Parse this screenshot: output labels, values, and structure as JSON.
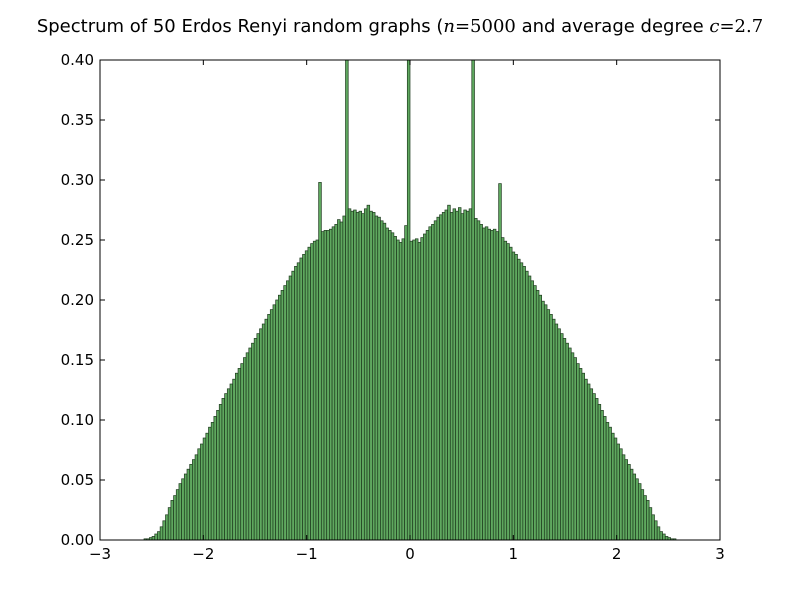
{
  "chart_data": {
    "type": "bar",
    "subtype": "histogram",
    "title_parts": {
      "prefix": "Spectrum of 50 Erdos Renyi random graphs (",
      "n_symbol": "n",
      "n_value": "=5000",
      "middle": " and average degree ",
      "c_symbol": "c",
      "c_value": "=2.7"
    },
    "xlabel": "",
    "ylabel": "",
    "xlim": [
      -3,
      3
    ],
    "ylim": [
      0,
      0.4
    ],
    "x_ticks": [
      "−3",
      "−2",
      "−1",
      "0",
      "1",
      "2",
      "3"
    ],
    "y_ticks": [
      "0.00",
      "0.05",
      "0.10",
      "0.15",
      "0.20",
      "0.25",
      "0.30",
      "0.35",
      "0.40"
    ],
    "bin_range": [
      -2.6,
      2.6
    ],
    "bin_count": 200,
    "grid": false,
    "bar_color": "#5fa85f",
    "edge_color": "#1e3b1e",
    "values": [
      0.0,
      0.001,
      0.001,
      0.002,
      0.003,
      0.005,
      0.007,
      0.011,
      0.016,
      0.021,
      0.027,
      0.033,
      0.037,
      0.042,
      0.047,
      0.051,
      0.055,
      0.059,
      0.063,
      0.067,
      0.071,
      0.076,
      0.08,
      0.085,
      0.089,
      0.094,
      0.098,
      0.103,
      0.108,
      0.113,
      0.118,
      0.122,
      0.126,
      0.13,
      0.134,
      0.139,
      0.143,
      0.147,
      0.152,
      0.156,
      0.16,
      0.164,
      0.168,
      0.172,
      0.176,
      0.18,
      0.184,
      0.188,
      0.192,
      0.196,
      0.2,
      0.204,
      0.208,
      0.212,
      0.216,
      0.22,
      0.224,
      0.228,
      0.231,
      0.235,
      0.238,
      0.241,
      0.244,
      0.247,
      0.249,
      0.25,
      0.298,
      0.257,
      0.258,
      0.258,
      0.259,
      0.261,
      0.263,
      0.267,
      0.265,
      0.27,
      0.45,
      0.276,
      0.274,
      0.275,
      0.273,
      0.274,
      0.272,
      0.276,
      0.279,
      0.274,
      0.273,
      0.27,
      0.269,
      0.266,
      0.264,
      0.26,
      0.258,
      0.256,
      0.253,
      0.25,
      0.248,
      0.251,
      0.262,
      0.45,
      0.249,
      0.25,
      0.251,
      0.248,
      0.252,
      0.255,
      0.258,
      0.261,
      0.263,
      0.266,
      0.269,
      0.271,
      0.273,
      0.275,
      0.279,
      0.273,
      0.276,
      0.274,
      0.277,
      0.272,
      0.275,
      0.274,
      0.276,
      0.45,
      0.268,
      0.266,
      0.263,
      0.26,
      0.261,
      0.259,
      0.258,
      0.259,
      0.257,
      0.297,
      0.252,
      0.249,
      0.247,
      0.244,
      0.24,
      0.238,
      0.234,
      0.231,
      0.228,
      0.224,
      0.22,
      0.216,
      0.212,
      0.208,
      0.204,
      0.199,
      0.196,
      0.192,
      0.188,
      0.184,
      0.18,
      0.176,
      0.172,
      0.168,
      0.164,
      0.16,
      0.156,
      0.152,
      0.147,
      0.143,
      0.139,
      0.134,
      0.13,
      0.126,
      0.122,
      0.118,
      0.113,
      0.108,
      0.103,
      0.098,
      0.094,
      0.089,
      0.085,
      0.08,
      0.076,
      0.071,
      0.067,
      0.063,
      0.059,
      0.055,
      0.051,
      0.047,
      0.042,
      0.037,
      0.033,
      0.027,
      0.021,
      0.016,
      0.011,
      0.007,
      0.005,
      0.003,
      0.002,
      0.001,
      0.001,
      0.0
    ]
  }
}
